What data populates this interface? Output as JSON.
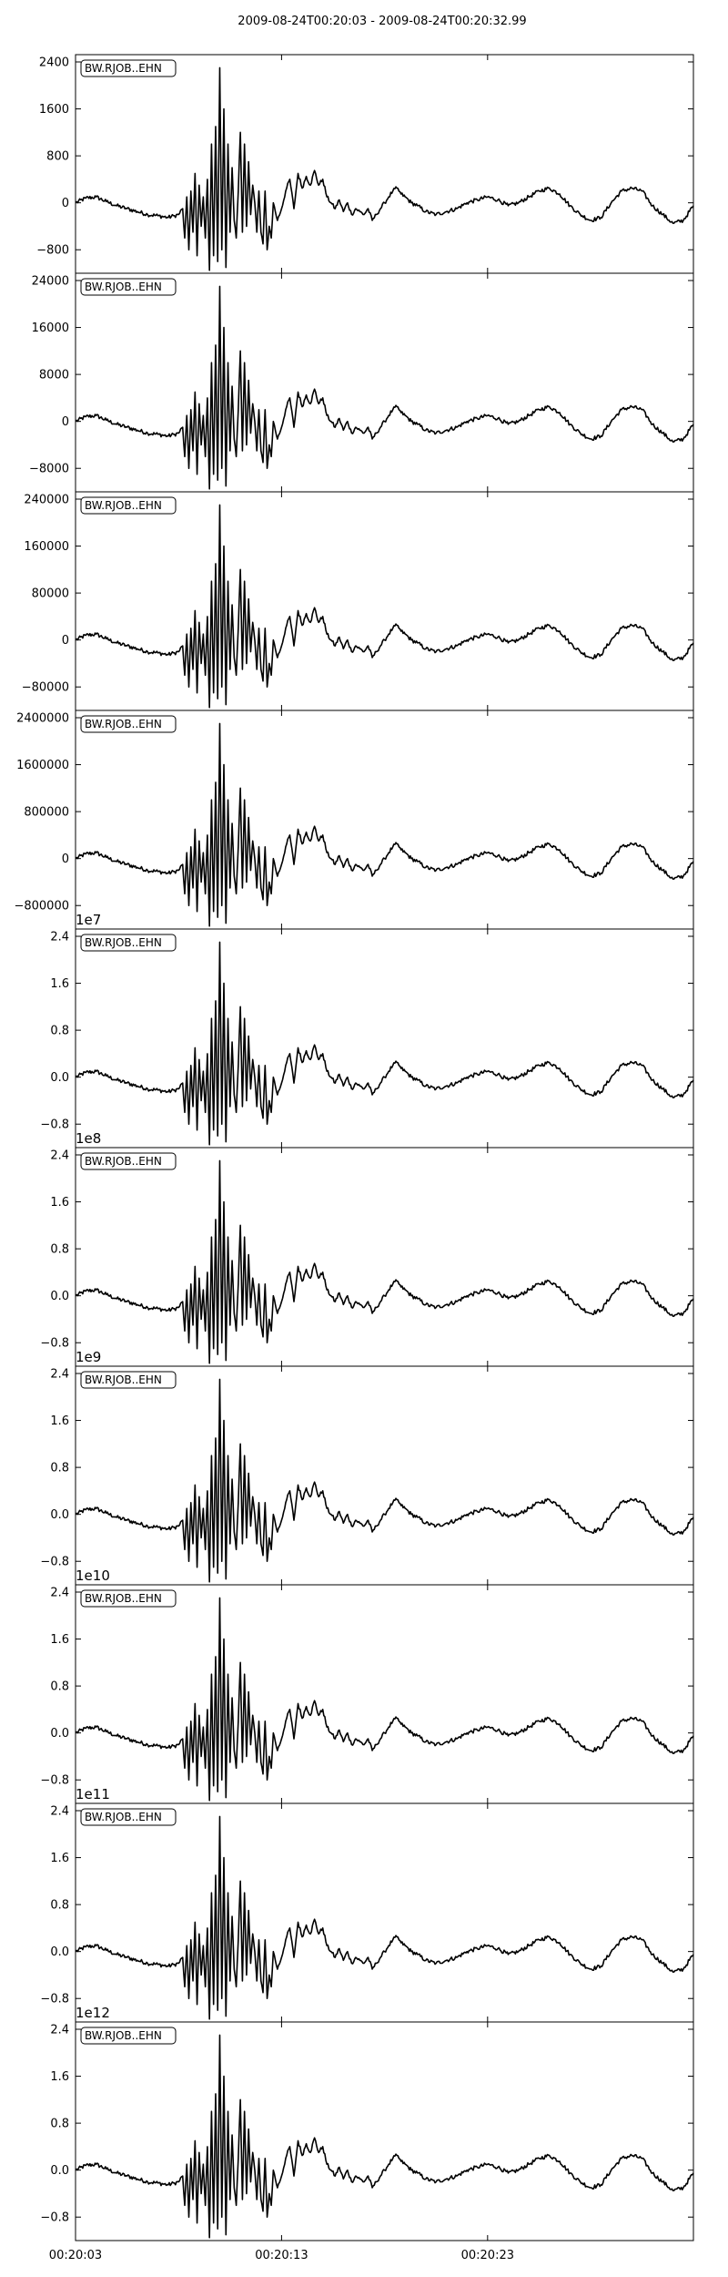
{
  "title": "2009-08-24T00:20:03  -  2009-08-24T00:20:32.99",
  "chart_data": {
    "type": "line",
    "x_tick_labels": [
      "00:20:03",
      "00:20:13",
      "00:20:23"
    ],
    "x_tick_seconds": [
      0,
      10,
      20
    ],
    "x_range_seconds": [
      0,
      29.99
    ],
    "panels": [
      {
        "label": "BW.RJOB..EHN",
        "exponent": "",
        "y_ticks": [
          2400,
          1600,
          800,
          0,
          -800
        ],
        "y_tick_labels": [
          "2400",
          "1600",
          "800",
          "0",
          "−800"
        ],
        "ylim": [
          -1200,
          2400
        ]
      },
      {
        "label": "BW.RJOB..EHN",
        "exponent": "",
        "y_ticks": [
          24000,
          16000,
          8000,
          0,
          -8000
        ],
        "y_tick_labels": [
          "24000",
          "16000",
          "8000",
          "0",
          "−8000"
        ],
        "ylim": [
          -12000,
          24000
        ]
      },
      {
        "label": "BW.RJOB..EHN",
        "exponent": "",
        "y_ticks": [
          240000,
          160000,
          80000,
          0,
          -80000
        ],
        "y_tick_labels": [
          "240000",
          "160000",
          "80000",
          "0",
          "−80000"
        ],
        "ylim": [
          -120000,
          240000
        ]
      },
      {
        "label": "BW.RJOB..EHN",
        "exponent": "",
        "y_ticks": [
          2400000,
          1600000,
          800000,
          0,
          -800000
        ],
        "y_tick_labels": [
          "2400000",
          "1600000",
          "800000",
          "0",
          "−800000"
        ],
        "ylim": [
          -1200000,
          2400000
        ]
      },
      {
        "label": "BW.RJOB..EHN",
        "exponent": "1e7",
        "y_ticks": [
          2.4,
          1.6,
          0.8,
          0.0,
          -0.8
        ],
        "y_tick_labels": [
          "2.4",
          "1.6",
          "0.8",
          "0.0",
          "−0.8"
        ],
        "ylim": [
          -1.2,
          2.4
        ]
      },
      {
        "label": "BW.RJOB..EHN",
        "exponent": "1e8",
        "y_ticks": [
          2.4,
          1.6,
          0.8,
          0.0,
          -0.8
        ],
        "y_tick_labels": [
          "2.4",
          "1.6",
          "0.8",
          "0.0",
          "−0.8"
        ],
        "ylim": [
          -1.2,
          2.4
        ]
      },
      {
        "label": "BW.RJOB..EHN",
        "exponent": "1e9",
        "y_ticks": [
          2.4,
          1.6,
          0.8,
          0.0,
          -0.8
        ],
        "y_tick_labels": [
          "2.4",
          "1.6",
          "0.8",
          "0.0",
          "−0.8"
        ],
        "ylim": [
          -1.2,
          2.4
        ]
      },
      {
        "label": "BW.RJOB..EHN",
        "exponent": "1e10",
        "y_ticks": [
          2.4,
          1.6,
          0.8,
          0.0,
          -0.8
        ],
        "y_tick_labels": [
          "2.4",
          "1.6",
          "0.8",
          "0.0",
          "−0.8"
        ],
        "ylim": [
          -1.2,
          2.4
        ]
      },
      {
        "label": "BW.RJOB..EHN",
        "exponent": "1e11",
        "y_ticks": [
          2.4,
          1.6,
          0.8,
          0.0,
          -0.8
        ],
        "y_tick_labels": [
          "2.4",
          "1.6",
          "0.8",
          "0.0",
          "−0.8"
        ],
        "ylim": [
          -1.2,
          2.4
        ]
      },
      {
        "label": "BW.RJOB..EHN",
        "exponent": "1e12",
        "y_ticks": [
          2.4,
          1.6,
          0.8,
          0.0,
          -0.8
        ],
        "y_tick_labels": [
          "2.4",
          "1.6",
          "0.8",
          "0.0",
          "−0.8"
        ],
        "ylim": [
          -1.2,
          2.4
        ]
      }
    ],
    "waveform": {
      "t_seconds": [
        0,
        0.5,
        1.0,
        1.5,
        2.0,
        2.5,
        3.0,
        3.5,
        4.0,
        4.5,
        4.8,
        5.0,
        5.2,
        5.3,
        5.4,
        5.5,
        5.6,
        5.7,
        5.8,
        5.9,
        6.0,
        6.1,
        6.2,
        6.3,
        6.4,
        6.5,
        6.6,
        6.7,
        6.8,
        6.9,
        7.0,
        7.1,
        7.2,
        7.3,
        7.4,
        7.5,
        7.6,
        7.7,
        7.8,
        7.9,
        8.0,
        8.1,
        8.2,
        8.3,
        8.4,
        8.5,
        8.6,
        8.7,
        8.8,
        8.9,
        9.0,
        9.1,
        9.2,
        9.3,
        9.4,
        9.5,
        9.6,
        9.8,
        10.0,
        10.2,
        10.4,
        10.6,
        10.8,
        11.0,
        11.2,
        11.4,
        11.6,
        11.8,
        12.0,
        12.2,
        12.4,
        12.6,
        12.8,
        13.0,
        13.2,
        13.4,
        13.6,
        13.8,
        14.0,
        14.2,
        14.4,
        14.6,
        14.8,
        15.0,
        15.2,
        15.4,
        15.6,
        15.8,
        16.0,
        16.3,
        16.6,
        17.0,
        17.5,
        18.0,
        18.5,
        19.0,
        19.5,
        20.0,
        20.5,
        21.0,
        21.5,
        22.0,
        22.5,
        23.0,
        23.5,
        24.0,
        24.5,
        25.0,
        25.5,
        26.0,
        26.5,
        27.0,
        27.5,
        28.0,
        28.5,
        29.0,
        29.5,
        29.99
      ],
      "y_relative": [
        0.0,
        0.08,
        0.1,
        0.02,
        -0.05,
        -0.1,
        -0.15,
        -0.2,
        -0.22,
        -0.25,
        -0.22,
        -0.2,
        -0.1,
        -0.6,
        0.1,
        -0.8,
        0.2,
        -0.5,
        0.5,
        -0.9,
        0.3,
        -0.4,
        0.1,
        -0.6,
        0.4,
        -1.15,
        1.0,
        -0.9,
        1.3,
        -1.0,
        2.3,
        -0.8,
        1.6,
        -1.1,
        1.0,
        -0.5,
        0.6,
        -0.3,
        -0.6,
        0.2,
        1.2,
        -0.5,
        1.0,
        -0.4,
        0.7,
        -0.2,
        0.3,
        0.0,
        -0.5,
        0.2,
        -0.5,
        -0.7,
        0.2,
        -0.8,
        -0.4,
        -0.6,
        0.0,
        -0.3,
        -0.1,
        0.2,
        0.4,
        -0.1,
        0.5,
        0.25,
        0.45,
        0.3,
        0.55,
        0.3,
        0.4,
        0.1,
        0.0,
        -0.1,
        0.05,
        -0.15,
        0.0,
        -0.2,
        -0.1,
        -0.15,
        -0.2,
        -0.1,
        -0.3,
        -0.2,
        -0.1,
        0.0,
        0.1,
        0.2,
        0.25,
        0.15,
        0.1,
        0.0,
        -0.05,
        -0.15,
        -0.2,
        -0.15,
        -0.1,
        0.0,
        0.05,
        0.1,
        0.05,
        -0.05,
        0.0,
        0.1,
        0.2,
        0.25,
        0.15,
        -0.05,
        -0.2,
        -0.3,
        -0.25,
        0.0,
        0.2,
        0.25,
        0.2,
        -0.05,
        -0.2,
        -0.35,
        -0.3,
        -0.05
      ],
      "jitter": 0.035
    }
  }
}
